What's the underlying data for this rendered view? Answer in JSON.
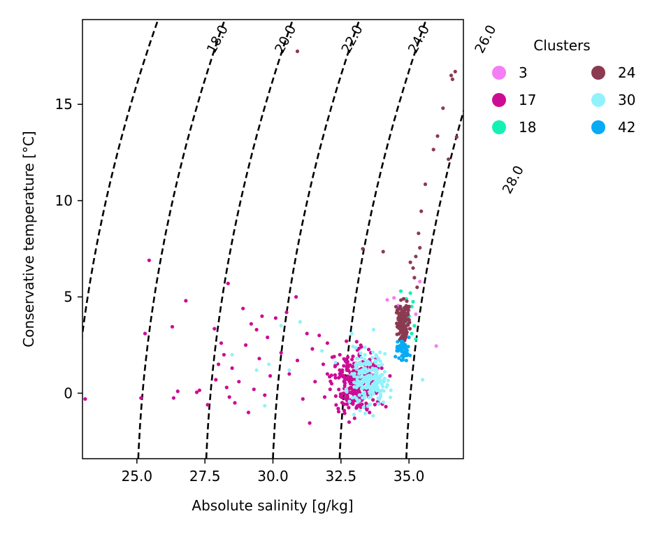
{
  "chart_data": {
    "type": "scatter",
    "xlabel": "Absolute salinity [g/kg]",
    "ylabel": "Conservative temperature [°C]",
    "xlim": [
      23.0,
      37.0
    ],
    "ylim": [
      -3.4,
      19.4
    ],
    "xticks": [
      25.0,
      27.5,
      30.0,
      32.5,
      35.0
    ],
    "xtick_labels": [
      "25.0",
      "27.5",
      "30.0",
      "32.5",
      "35.0"
    ],
    "yticks": [
      0,
      5,
      10,
      15
    ],
    "ytick_labels": [
      "0",
      "5",
      "10",
      "15"
    ],
    "grid": false,
    "legend": {
      "title": "Clusters",
      "placement": "outside-top-right",
      "columns": 2
    },
    "density_contours": {
      "style": "dashed",
      "color": "#000000",
      "levels": [
        {
          "label": "18.0",
          "bottom_salinity": 25.05
        },
        {
          "label": "20.0",
          "bottom_salinity": 27.55
        },
        {
          "label": "22.0",
          "bottom_salinity": 30.0
        },
        {
          "label": "24.0",
          "bottom_salinity": 32.45
        },
        {
          "label": "26.0",
          "bottom_salinity": 34.9
        },
        {
          "label": "28.0",
          "bottom_salinity": 37.35
        }
      ],
      "unlabeled_levels": [
        {
          "bottom_salinity": 22.6
        }
      ]
    },
    "series": [
      {
        "name": "3",
        "color": "#f47ef5",
        "points": [
          [
            34.2,
            4.85
          ],
          [
            34.45,
            4.95
          ],
          [
            34.6,
            4.55
          ],
          [
            35.0,
            4.3
          ],
          [
            35.4,
            5.8
          ],
          [
            36.0,
            2.45
          ],
          [
            34.9,
            3.4
          ],
          [
            35.25,
            4.1
          ]
        ]
      },
      {
        "name": "17",
        "color": "#cc0c95",
        "points": [
          [
            23.1,
            -0.3
          ],
          [
            25.15,
            -0.25
          ],
          [
            25.3,
            3.1
          ],
          [
            25.45,
            6.9
          ],
          [
            26.3,
            3.45
          ],
          [
            26.35,
            -0.25
          ],
          [
            26.5,
            0.1
          ],
          [
            26.8,
            4.8
          ],
          [
            27.2,
            0.05
          ],
          [
            27.3,
            0.15
          ],
          [
            27.6,
            -0.6
          ],
          [
            27.85,
            3.35
          ],
          [
            27.9,
            0.7
          ],
          [
            28.0,
            1.5
          ],
          [
            28.1,
            2.6
          ],
          [
            28.2,
            2.0
          ],
          [
            28.3,
            0.3
          ],
          [
            28.35,
            5.7
          ],
          [
            28.4,
            -0.2
          ],
          [
            28.5,
            1.3
          ],
          [
            28.6,
            -0.5
          ],
          [
            28.75,
            0.6
          ],
          [
            28.9,
            4.4
          ],
          [
            29.0,
            2.5
          ],
          [
            29.1,
            -1.0
          ],
          [
            29.2,
            3.6
          ],
          [
            29.3,
            0.2
          ],
          [
            29.4,
            3.3
          ],
          [
            29.5,
            1.8
          ],
          [
            29.6,
            4.0
          ],
          [
            29.7,
            -0.1
          ],
          [
            29.8,
            2.9
          ],
          [
            29.9,
            0.9
          ],
          [
            30.1,
            3.9
          ],
          [
            30.3,
            2.1
          ],
          [
            30.5,
            4.2
          ],
          [
            30.6,
            1.0
          ],
          [
            30.85,
            5.0
          ],
          [
            30.9,
            1.7
          ],
          [
            31.1,
            -0.3
          ],
          [
            31.25,
            3.1
          ],
          [
            31.35,
            -1.55
          ],
          [
            31.45,
            2.3
          ],
          [
            31.55,
            0.6
          ],
          [
            31.7,
            3.0
          ],
          [
            31.85,
            1.5
          ],
          [
            32.0,
            2.6
          ],
          [
            32.1,
            0.2
          ],
          [
            32.25,
            1.9
          ],
          [
            32.4,
            -0.8
          ],
          [
            32.55,
            1.2
          ],
          [
            32.7,
            2.7
          ],
          [
            32.85,
            0.5
          ],
          [
            33.0,
            -1.3
          ],
          [
            33.1,
            1.8
          ],
          [
            33.25,
            2.4
          ],
          [
            33.4,
            0.7
          ],
          [
            33.55,
            -1.0
          ],
          [
            33.7,
            1.5
          ],
          [
            33.85,
            0.1
          ],
          [
            34.0,
            1.3
          ],
          [
            34.15,
            -0.7
          ],
          [
            34.3,
            0.9
          ],
          [
            32.8,
            -1.5
          ],
          [
            32.3,
            0.8
          ],
          [
            31.9,
            -0.2
          ],
          [
            33.6,
            2.1
          ],
          [
            32.6,
            0.0
          ],
          [
            33.2,
            -0.4
          ],
          [
            32.0,
            1.0
          ]
        ],
        "cloud": {
          "x_range": [
            31.8,
            34.3
          ],
          "y_range": [
            -1.6,
            3.0
          ],
          "count": 300
        }
      },
      {
        "name": "18",
        "color": "#13f2b4",
        "points": [
          [
            34.85,
            4.1
          ],
          [
            34.9,
            4.9
          ],
          [
            34.95,
            3.7
          ],
          [
            35.05,
            5.2
          ],
          [
            35.1,
            4.5
          ],
          [
            35.2,
            3.5
          ],
          [
            35.15,
            4.75
          ],
          [
            34.8,
            3.9
          ],
          [
            35.25,
            2.8
          ],
          [
            34.7,
            5.3
          ],
          [
            35.1,
            3.1
          ],
          [
            35.0,
            4.0
          ]
        ]
      },
      {
        "name": "24",
        "color": "#8b3a52",
        "points": [
          [
            30.9,
            17.75
          ],
          [
            36.55,
            16.5
          ],
          [
            36.6,
            16.3
          ],
          [
            36.7,
            16.7
          ],
          [
            36.25,
            14.8
          ],
          [
            36.75,
            13.3
          ],
          [
            36.05,
            13.35
          ],
          [
            35.9,
            12.65
          ],
          [
            36.45,
            12.15
          ],
          [
            35.6,
            10.85
          ],
          [
            35.45,
            9.45
          ],
          [
            35.35,
            8.3
          ],
          [
            35.4,
            7.55
          ],
          [
            33.3,
            7.5
          ],
          [
            34.05,
            7.35
          ],
          [
            35.25,
            7.1
          ],
          [
            35.05,
            6.8
          ],
          [
            35.15,
            6.5
          ],
          [
            35.2,
            6.0
          ],
          [
            35.3,
            5.5
          ],
          [
            34.8,
            4.9
          ],
          [
            35.0,
            4.5
          ]
        ],
        "cloud": {
          "x_range": [
            34.4,
            35.15
          ],
          "y_range": [
            2.2,
            5.1
          ],
          "count": 120
        }
      },
      {
        "name": "30",
        "color": "#91f2fc",
        "points": [
          [
            28.5,
            2.0
          ],
          [
            29.4,
            1.2
          ],
          [
            29.7,
            -0.65
          ],
          [
            29.85,
            1.5
          ],
          [
            30.3,
            3.5
          ],
          [
            30.6,
            1.2
          ],
          [
            31.0,
            3.7
          ],
          [
            31.8,
            2.2
          ],
          [
            32.3,
            1.6
          ],
          [
            32.9,
            3.1
          ],
          [
            35.5,
            0.7
          ],
          [
            33.7,
            3.3
          ],
          [
            33.2,
            -0.9
          ],
          [
            32.7,
            0.2
          ]
        ],
        "cloud": {
          "x_range": [
            32.5,
            34.6
          ],
          "y_range": [
            -1.4,
            2.9
          ],
          "count": 200
        }
      },
      {
        "name": "42",
        "color": "#07aaf5",
        "points": [
          [
            34.5,
            1.9
          ],
          [
            34.6,
            2.2
          ],
          [
            34.75,
            2.5
          ],
          [
            34.9,
            1.7
          ],
          [
            35.0,
            2.9
          ],
          [
            34.85,
            2.15
          ]
        ],
        "cloud": {
          "x_range": [
            34.45,
            35.1
          ],
          "y_range": [
            1.5,
            3.0
          ],
          "count": 40
        }
      }
    ]
  }
}
